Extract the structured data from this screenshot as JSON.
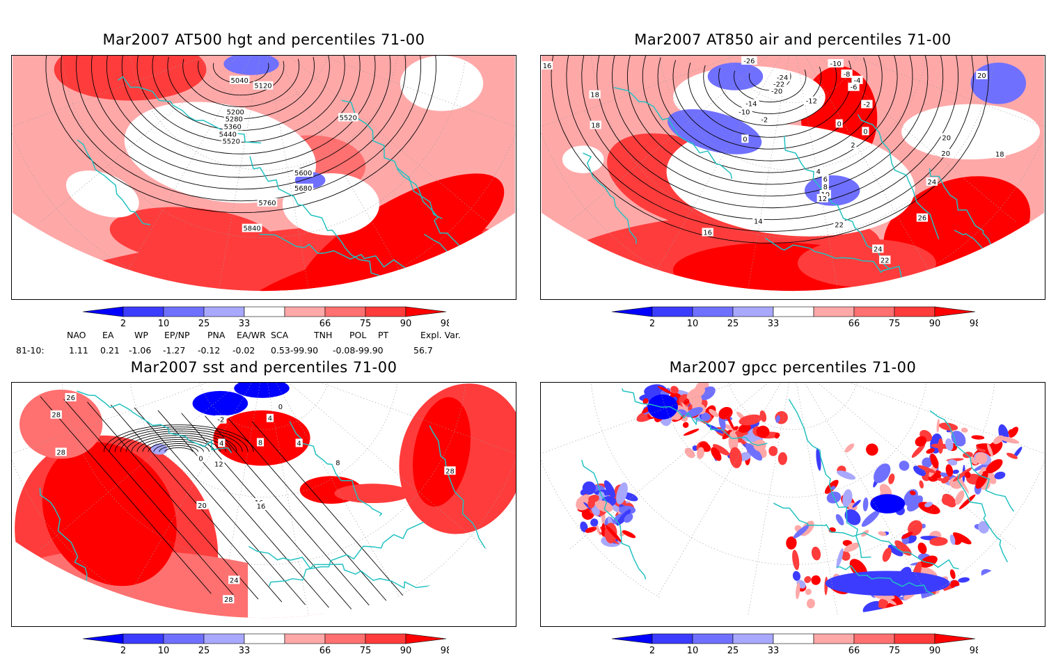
{
  "panels": [
    {
      "title": "Mar2007 AT500 hgt and percentiles 71-00",
      "contour_labels": [
        "5040",
        "5120",
        "5200",
        "5280",
        "5360",
        "5440",
        "5520",
        "5520",
        "5600",
        "5680",
        "5760",
        "5840"
      ]
    },
    {
      "title": "Mar2007 AT850 air and percentiles 71-00",
      "contour_labels": [
        "-26",
        "-24",
        "-22",
        "-20",
        "-14",
        "-12",
        "-10",
        "-10",
        "-8",
        "-6",
        "-4",
        "-2",
        "-2",
        "0",
        "0",
        "0",
        "2",
        "4",
        "6",
        "8",
        "10",
        "12",
        "14",
        "16",
        "16",
        "18",
        "18",
        "18",
        "20",
        "20",
        "20",
        "22",
        "22",
        "24",
        "24",
        "26"
      ]
    },
    {
      "title": "Mar2007 sst and percentiles 71-00",
      "contour_labels": [
        "26",
        "28",
        "28",
        "-2",
        "0",
        "0",
        "4",
        "4",
        "8",
        "12",
        "16",
        "16",
        "20",
        "24",
        "28",
        "4",
        "8",
        "28"
      ]
    },
    {
      "title": "Mar2007 gpcc percentiles 71-00",
      "contour_labels": []
    }
  ],
  "colorbar": {
    "ticks": [
      "2",
      "10",
      "25",
      "33",
      "66",
      "75",
      "90",
      "98"
    ],
    "colors": [
      "#0000ff",
      "#3c3cff",
      "#7070ff",
      "#a8a8ff",
      "#ffffff",
      "#ffa8a8",
      "#ff7070",
      "#ff3c3c",
      "#ff0000"
    ]
  },
  "indices": {
    "headers": [
      "NAO",
      "EA",
      "WP",
      "EP/NP",
      "PNA",
      "EA/WR",
      "SCA",
      "TNH",
      "POL",
      "PT",
      "Expl. Var."
    ],
    "row_label": "81-10:",
    "values": [
      "1.11",
      "0.21",
      "-1.06",
      "-1.27",
      "-0.12",
      "-0.02",
      "0.53-99.90",
      "-0.08-99.90",
      "56.7"
    ]
  },
  "colors": {
    "coast": "#22c1c1",
    "contour": "#000000",
    "grid": "#9a9a9a"
  }
}
